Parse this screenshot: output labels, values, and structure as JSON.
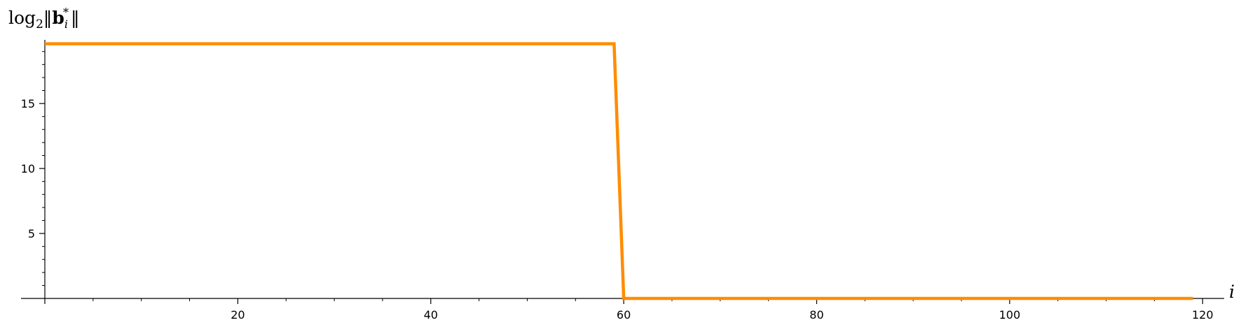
{
  "chart_data": {
    "type": "line",
    "x_axis_label": "i",
    "y_axis_label": {
      "base": "log",
      "subscript": "2",
      "norm_open": "‖",
      "vector": "b",
      "vector_subscript": "i",
      "vector_superscript": "*",
      "norm_close": "‖"
    },
    "xlim": [
      0,
      121
    ],
    "ylim": [
      0,
      19.9
    ],
    "x_ticks": [
      20,
      40,
      60,
      80,
      100,
      120
    ],
    "x_tick_labels": [
      "20",
      "40",
      "60",
      "80",
      "100",
      "120"
    ],
    "y_ticks": [
      5,
      10,
      15
    ],
    "y_tick_labels": [
      "5",
      "10",
      "15"
    ],
    "x_minor_step": 5,
    "y_minor_step": 1,
    "grid": false,
    "series": [
      {
        "color": "#ff8c00",
        "x": [
          0,
          59,
          60,
          119
        ],
        "y": [
          19.6,
          19.6,
          0,
          0
        ]
      }
    ]
  }
}
